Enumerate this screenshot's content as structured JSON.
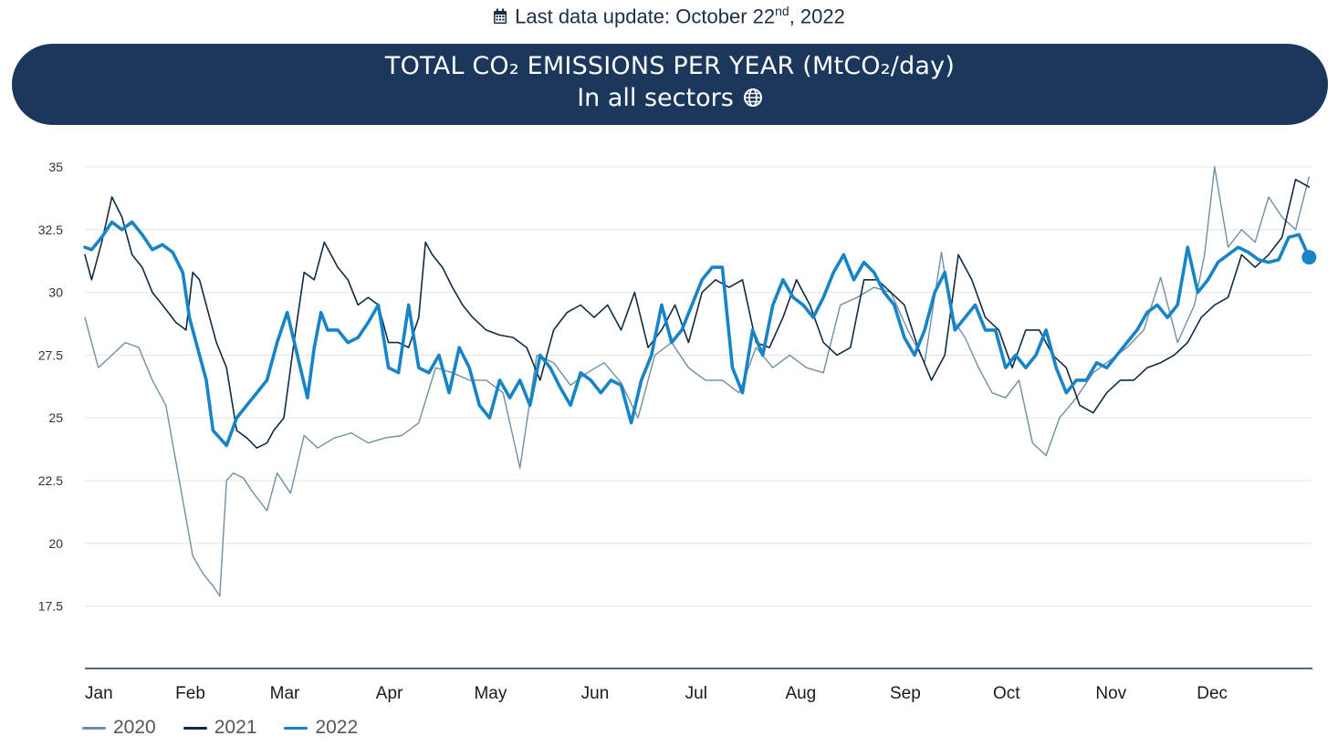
{
  "update": {
    "text_before": "Last data update: October 22",
    "superscript": "nd",
    "text_after": ", 2022"
  },
  "banner": {
    "title": "TOTAL CO₂ EMISSIONS PER YEAR (MtCO₂/day)",
    "subtitle": "In all sectors"
  },
  "colors": {
    "banner": "#1b375b",
    "grid": "#e4e4e4",
    "axis": "#1b375b"
  },
  "icons": [
    "calendar-icon",
    "globe-icon"
  ],
  "chart_data": {
    "type": "line",
    "title": "TOTAL CO₂ EMISSIONS PER YEAR (MtCO₂/day)",
    "subtitle": "In all sectors",
    "xlabel": "",
    "ylabel": "",
    "ylim": [
      15,
      35
    ],
    "yticks": [
      35,
      32.5,
      30,
      27.5,
      25,
      22.5,
      20,
      17.5
    ],
    "ytick_labels": [
      "35",
      "32.5",
      "30",
      "27.5",
      "25",
      "22.5",
      "20",
      "17.5"
    ],
    "grid": true,
    "legend_position": "bottom-left",
    "months": [
      "Jan",
      "Feb",
      "Mar",
      "Apr",
      "May",
      "Jun",
      "Jul",
      "Aug",
      "Sep",
      "Oct",
      "Nov",
      "Dec"
    ],
    "series": [
      {
        "name": "2020",
        "color": "#6f8fa3",
        "width": 1.4,
        "days": [
          1,
          5,
          9,
          13,
          17,
          21,
          25,
          29,
          33,
          36,
          39,
          41,
          43,
          45,
          48,
          51,
          55,
          58,
          62,
          66,
          70,
          75,
          80,
          85,
          90,
          95,
          100,
          105,
          110,
          115,
          120,
          125,
          130,
          135,
          140,
          145,
          150,
          155,
          160,
          165,
          170,
          175,
          180,
          185,
          190,
          195,
          200,
          205,
          210,
          215,
          220,
          225,
          230,
          235,
          240,
          245,
          250,
          255,
          258,
          262,
          266,
          270,
          274,
          278,
          282,
          286,
          290,
          295,
          300,
          305,
          310,
          315,
          320,
          325,
          330,
          333,
          336,
          340,
          344,
          348,
          352,
          356,
          360,
          364
        ],
        "values": [
          29.0,
          27.0,
          27.5,
          28.0,
          27.8,
          26.5,
          25.5,
          22.5,
          19.5,
          18.8,
          18.3,
          17.9,
          22.5,
          22.8,
          22.6,
          22.0,
          21.3,
          22.8,
          22.0,
          24.3,
          23.8,
          24.2,
          24.4,
          24.0,
          24.2,
          24.3,
          24.8,
          27.0,
          26.8,
          26.5,
          26.5,
          26.0,
          23.0,
          27.5,
          27.2,
          26.3,
          26.8,
          27.2,
          26.4,
          25.0,
          27.5,
          28.0,
          27.0,
          26.5,
          26.5,
          26.0,
          27.8,
          27.0,
          27.5,
          27.0,
          26.8,
          29.5,
          29.8,
          30.2,
          30.0,
          28.5,
          27.2,
          31.6,
          29.0,
          28.2,
          27.0,
          26.0,
          25.8,
          26.5,
          24.0,
          23.5,
          25.0,
          25.8,
          26.8,
          27.3,
          27.8,
          28.5,
          30.6,
          28.0,
          29.5,
          31.5,
          35.0,
          31.8,
          32.5,
          32.0,
          33.8,
          33.0,
          32.5,
          34.6
        ]
      },
      {
        "name": "2021",
        "color": "#102a43",
        "width": 1.6,
        "days": [
          1,
          3,
          6,
          9,
          12,
          15,
          18,
          21,
          24,
          28,
          31,
          33,
          35,
          37,
          40,
          43,
          46,
          49,
          52,
          55,
          57,
          60,
          63,
          66,
          69,
          72,
          74,
          76,
          79,
          82,
          85,
          88,
          91,
          94,
          97,
          100,
          102,
          104,
          107,
          110,
          113,
          116,
          120,
          124,
          128,
          132,
          136,
          140,
          144,
          148,
          152,
          156,
          160,
          164,
          168,
          172,
          176,
          180,
          184,
          188,
          192,
          196,
          200,
          204,
          208,
          212,
          216,
          220,
          224,
          228,
          232,
          236,
          240,
          244,
          248,
          252,
          256,
          260,
          264,
          268,
          272,
          276,
          280,
          284,
          288,
          292,
          296,
          300,
          304,
          308,
          312,
          316,
          320,
          324,
          328,
          332,
          336,
          340,
          344,
          348,
          352,
          356,
          360,
          364
        ],
        "values": [
          31.5,
          30.5,
          32.0,
          33.8,
          33.0,
          31.5,
          31.0,
          30.0,
          29.5,
          28.8,
          28.5,
          30.8,
          30.5,
          29.5,
          28.0,
          27.0,
          24.5,
          24.2,
          23.8,
          24.0,
          24.5,
          25.0,
          28.0,
          30.8,
          30.5,
          32.0,
          31.5,
          31.0,
          30.5,
          29.5,
          29.8,
          29.5,
          28.0,
          28.0,
          27.8,
          29.0,
          32.0,
          31.5,
          31.0,
          30.2,
          29.5,
          29.0,
          28.5,
          28.3,
          28.2,
          27.8,
          26.5,
          28.5,
          29.2,
          29.5,
          29.0,
          29.5,
          28.5,
          30.0,
          27.8,
          28.5,
          29.5,
          28.0,
          30.0,
          30.5,
          30.2,
          30.5,
          28.0,
          27.8,
          29.0,
          30.5,
          29.5,
          28.0,
          27.5,
          27.8,
          30.5,
          30.5,
          30.0,
          29.5,
          27.8,
          26.5,
          27.5,
          31.5,
          30.5,
          29.0,
          28.5,
          27.0,
          28.5,
          28.5,
          27.5,
          27.0,
          25.5,
          25.2,
          26.0,
          26.5,
          26.5,
          27.0,
          27.2,
          27.5,
          28.0,
          29.0,
          29.5,
          29.8,
          31.5,
          31.0,
          31.5,
          32.2,
          34.5,
          34.2
        ]
      },
      {
        "name": "2022",
        "color": "#1784c7",
        "width": 3.6,
        "days": [
          1,
          3,
          6,
          9,
          12,
          15,
          18,
          21,
          24,
          27,
          30,
          32,
          35,
          37,
          39,
          41,
          43,
          46,
          49,
          52,
          55,
          58,
          61,
          64,
          67,
          69,
          71,
          73,
          76,
          79,
          82,
          85,
          88,
          91,
          94,
          97,
          100,
          103,
          106,
          109,
          112,
          115,
          118,
          121,
          124,
          127,
          130,
          133,
          136,
          139,
          142,
          145,
          148,
          151,
          154,
          157,
          160,
          163,
          166,
          169,
          172,
          175,
          178,
          181,
          184,
          187,
          190,
          193,
          196,
          199,
          202,
          205,
          208,
          211,
          214,
          217,
          220,
          223,
          226,
          229,
          232,
          235,
          238,
          241,
          244,
          247,
          250,
          253,
          256,
          259,
          262,
          265,
          268,
          271,
          274,
          277,
          280,
          283,
          286,
          289,
          292,
          295,
          298,
          301,
          304,
          307,
          310,
          313,
          316,
          319,
          322,
          325,
          328,
          331,
          334,
          337,
          340,
          343,
          346,
          349,
          352,
          355,
          358,
          361,
          364
        ],
        "values": [
          31.8,
          31.7,
          32.2,
          32.8,
          32.5,
          32.8,
          32.3,
          31.7,
          31.9,
          31.6,
          30.8,
          29.0,
          27.5,
          26.5,
          24.5,
          24.2,
          23.9,
          25.0,
          25.5,
          26.0,
          26.5,
          28.0,
          29.2,
          27.5,
          25.8,
          27.8,
          29.2,
          28.5,
          28.5,
          28.0,
          28.2,
          28.8,
          29.5,
          27.0,
          26.8,
          29.5,
          27.0,
          26.8,
          27.5,
          26.0,
          27.8,
          27.0,
          25.5,
          25.0,
          26.5,
          25.8,
          26.5,
          25.5,
          27.5,
          27.0,
          26.2,
          25.5,
          26.8,
          26.5,
          26.0,
          26.5,
          26.3,
          24.8,
          26.5,
          27.5,
          29.5,
          28.0,
          28.5,
          29.5,
          30.5,
          31.0,
          31.0,
          27.0,
          26.0,
          28.5,
          27.5,
          29.5,
          30.5,
          29.8,
          29.5,
          29.0,
          29.8,
          30.8,
          31.5,
          30.5,
          31.2,
          30.8,
          30.0,
          29.5,
          28.2,
          27.5,
          28.5,
          30.0,
          30.8,
          28.5,
          29.0,
          29.5,
          28.5,
          28.5,
          27.0,
          27.5,
          27.0,
          27.5,
          28.5,
          27.0,
          26.0,
          26.5,
          26.5,
          27.2,
          27.0,
          27.5,
          28.0,
          28.5,
          29.2,
          29.5,
          29.0,
          29.5,
          31.8,
          30.0,
          30.5,
          31.2,
          31.5,
          31.8,
          31.6,
          31.3,
          31.2,
          31.3,
          32.2,
          32.3,
          31.4
        ]
      }
    ]
  }
}
